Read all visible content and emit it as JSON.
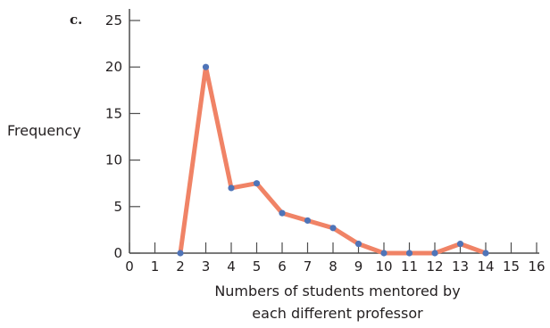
{
  "panel_label": "c.",
  "chart_data": {
    "type": "line",
    "xlabel_lines": [
      "Numbers of students mentored by",
      "each different professor"
    ],
    "ylabel": "Frequency",
    "x_ticks": [
      0,
      1,
      2,
      3,
      4,
      5,
      6,
      7,
      8,
      9,
      10,
      11,
      12,
      13,
      14,
      15,
      16
    ],
    "y_ticks": [
      0,
      5,
      10,
      15,
      20,
      25
    ],
    "xlim": [
      0,
      16
    ],
    "ylim": [
      0,
      25
    ],
    "grid": false,
    "x": [
      2,
      3,
      4,
      5,
      6,
      7,
      8,
      9,
      10,
      11,
      12,
      13,
      14
    ],
    "y": [
      0,
      20,
      7,
      7.5,
      4.3,
      3.5,
      2.7,
      1,
      0,
      0,
      0,
      1,
      0
    ],
    "colors": {
      "line": "#f08366",
      "marker": "#4f74b8",
      "axis": "#4d4d4d",
      "text": "#231f20"
    }
  }
}
